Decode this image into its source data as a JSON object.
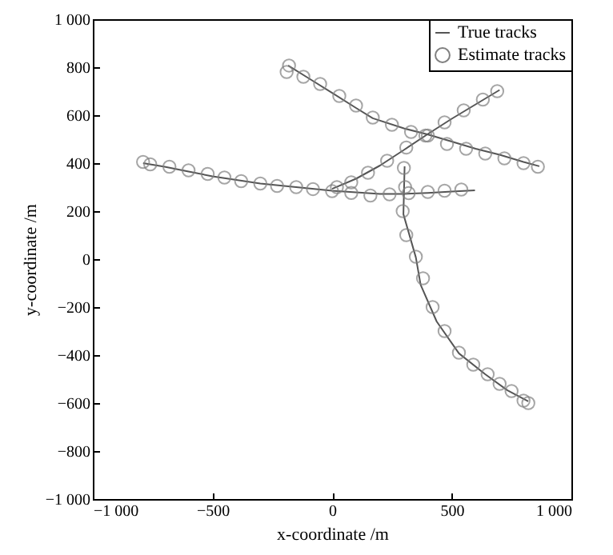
{
  "chart_data": {
    "type": "line",
    "xlabel": "x-coordinate /m",
    "ylabel": "y-coordinate /m",
    "legend": "top right",
    "grid": false,
    "xlim": [
      -1000,
      1000
    ],
    "xticks": [
      {
        "value": -1000,
        "label": "−1 000"
      },
      {
        "value": -500,
        "label": "−500"
      },
      0,
      500,
      {
        "value": 1000,
        "label": "1 000"
      }
    ],
    "ylim": [
      -1000,
      1000
    ],
    "yticks": [
      {
        "value": -1000,
        "label": "−1 000"
      },
      {
        "value": -800,
        "label": "−800"
      },
      {
        "value": -600,
        "label": "−600"
      },
      {
        "value": -400,
        "label": "−400"
      },
      {
        "value": -200,
        "label": "−200"
      },
      0,
      200,
      400,
      600,
      800,
      {
        "value": 1000,
        "label": "1 000"
      }
    ],
    "series": [
      {
        "name": "True tracks",
        "color": "#555555",
        "x": [
          -184,
          -100,
          0,
          100,
          170,
          300,
          398,
          500,
          600,
          700,
          800,
          866
        ],
        "values": [
          807,
          755,
          693,
          630,
          587,
          545,
          520,
          490,
          460,
          435,
          405,
          387
        ]
      },
      {
        "color": "#555555",
        "x": [
          -790,
          -700,
          -600,
          -500,
          -400,
          -300,
          -200,
          -100,
          0,
          100,
          200,
          300,
          400,
          500,
          597
        ],
        "values": [
          400,
          385,
          365,
          345,
          330,
          315,
          305,
          295,
          285,
          278,
          272,
          272,
          276,
          282,
          287
        ]
      },
      {
        "color": "#555555",
        "x": [
          0,
          100,
          200,
          300,
          398,
          500,
          600,
          700
        ],
        "values": [
          293,
          335,
          390,
          455,
          520,
          585,
          645,
          705
        ]
      },
      {
        "color": "#555555",
        "x": [
          303,
          298,
          350,
          370,
          437,
          530,
          640,
          733,
          820
        ],
        "values": [
          387,
          187,
          7,
          -107,
          -260,
          -393,
          -480,
          -547,
          -593
        ]
      },
      {
        "type": "scatter",
        "name": "Estimate tracks",
        "color": "#808080",
        "marker": "circle",
        "x": [
          -190,
          -180,
          -120,
          -50,
          30,
          100,
          170,
          250,
          330,
          400,
          480,
          560,
          640,
          720,
          800,
          860
        ],
        "values": [
          780,
          807,
          760,
          730,
          680,
          640,
          590,
          560,
          530,
          515,
          480,
          460,
          440,
          420,
          400,
          385
        ]
      },
      {
        "type": "scatter",
        "color": "#808080",
        "marker": "circle",
        "x": [
          -790,
          -760,
          -680,
          -600,
          -520,
          -450,
          -380,
          -300,
          -230,
          -150,
          -80,
          0,
          80,
          160,
          240,
          320,
          400,
          470,
          540
        ],
        "values": [
          405,
          395,
          385,
          370,
          355,
          340,
          325,
          315,
          305,
          300,
          292,
          283,
          276,
          265,
          270,
          275,
          280,
          285,
          290
        ]
      },
      {
        "type": "scatter",
        "color": "#808080",
        "marker": "circle",
        "x": [
          20,
          80,
          150,
          230,
          310,
          390,
          470,
          550,
          630,
          690
        ],
        "values": [
          300,
          320,
          360,
          410,
          465,
          515,
          570,
          620,
          665,
          700
        ]
      },
      {
        "type": "scatter",
        "color": "#808080",
        "marker": "circle",
        "x": [
          300,
          305,
          295,
          310,
          350,
          380,
          420,
          470,
          530,
          590,
          650,
          700,
          750,
          800,
          820
        ],
        "values": [
          380,
          300,
          200,
          100,
          10,
          -80,
          -200,
          -300,
          -390,
          -440,
          -480,
          -520,
          -550,
          -590,
          -600
        ]
      }
    ]
  }
}
